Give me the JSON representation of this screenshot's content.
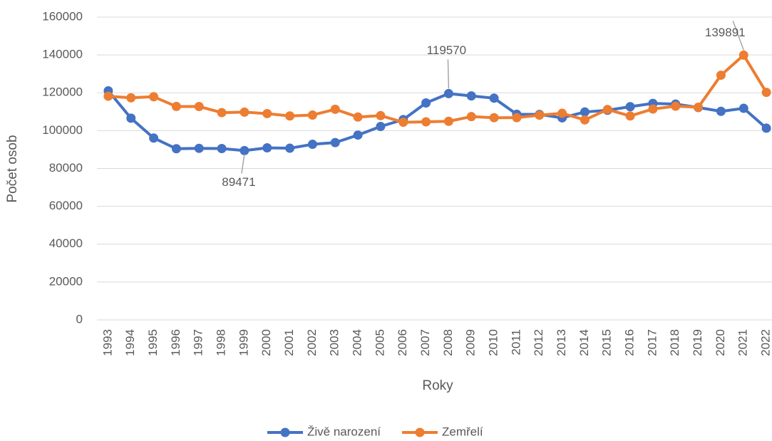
{
  "chart_data": {
    "type": "line",
    "x_label": "Roky",
    "y_label": "Počet osob",
    "categories": [
      "1993",
      "1994",
      "1995",
      "1996",
      "1997",
      "1998",
      "1999",
      "2000",
      "2001",
      "2002",
      "2003",
      "2004",
      "2005",
      "2006",
      "2007",
      "2008",
      "2009",
      "2010",
      "2011",
      "2012",
      "2013",
      "2014",
      "2015",
      "2016",
      "2017",
      "2018",
      "2019",
      "2020",
      "2021",
      "2022"
    ],
    "series": [
      {
        "name": "Živě narození",
        "color": "#4472c4",
        "values": [
          121025,
          106579,
          96097,
          90446,
          90657,
          90535,
          89471,
          90910,
          90715,
          92786,
          93685,
          97664,
          102211,
          105831,
          114632,
          119570,
          118348,
          117153,
          108673,
          108576,
          106751,
          109860,
          110764,
          112663,
          114405,
          114036,
          112231,
          110200,
          111793,
          101299
        ],
        "value_labels": [
          null,
          null,
          null,
          null,
          null,
          null,
          "89471",
          null,
          null,
          null,
          null,
          null,
          null,
          null,
          null,
          "119570",
          null,
          null,
          null,
          null,
          null,
          null,
          null,
          null,
          null,
          null,
          null,
          null,
          null,
          null
        ]
      },
      {
        "name": "Zemřelí",
        "color": "#ed7d31",
        "values": [
          118185,
          117373,
          117913,
          112782,
          112744,
          109527,
          109768,
          109001,
          107755,
          108243,
          111288,
          107177,
          107938,
          104441,
          104636,
          104948,
          107421,
          106844,
          106848,
          108189,
          109160,
          105665,
          111173,
          107750,
          111443,
          112920,
          112362,
          129289,
          139891,
          120219
        ],
        "value_labels": [
          null,
          null,
          null,
          null,
          null,
          null,
          null,
          null,
          null,
          null,
          null,
          null,
          null,
          null,
          null,
          null,
          null,
          null,
          null,
          null,
          null,
          null,
          null,
          null,
          null,
          null,
          null,
          null,
          "139891",
          null
        ]
      }
    ],
    "ylim": [
      0,
      160000
    ],
    "yticks": [
      0,
      20000,
      40000,
      60000,
      80000,
      100000,
      120000,
      140000,
      160000
    ],
    "grid": true,
    "legend": "bottom"
  }
}
